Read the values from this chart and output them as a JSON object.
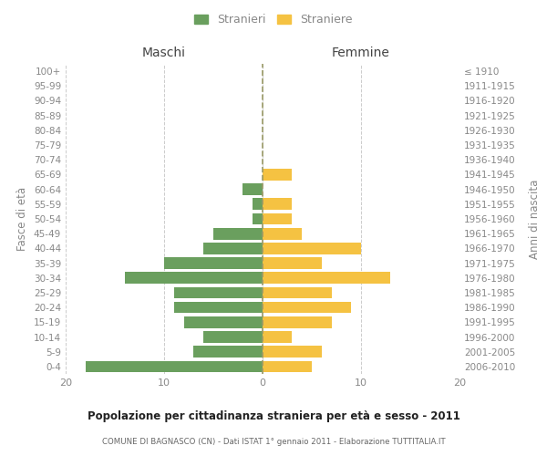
{
  "age_groups": [
    "0-4",
    "5-9",
    "10-14",
    "15-19",
    "20-24",
    "25-29",
    "30-34",
    "35-39",
    "40-44",
    "45-49",
    "50-54",
    "55-59",
    "60-64",
    "65-69",
    "70-74",
    "75-79",
    "80-84",
    "85-89",
    "90-94",
    "95-99",
    "100+"
  ],
  "birth_years": [
    "2006-2010",
    "2001-2005",
    "1996-2000",
    "1991-1995",
    "1986-1990",
    "1981-1985",
    "1976-1980",
    "1971-1975",
    "1966-1970",
    "1961-1965",
    "1956-1960",
    "1951-1955",
    "1946-1950",
    "1941-1945",
    "1936-1940",
    "1931-1935",
    "1926-1930",
    "1921-1925",
    "1916-1920",
    "1911-1915",
    "≤ 1910"
  ],
  "maschi": [
    18,
    7,
    6,
    8,
    9,
    9,
    14,
    10,
    6,
    5,
    1,
    1,
    2,
    0,
    0,
    0,
    0,
    0,
    0,
    0,
    0
  ],
  "femmine": [
    5,
    6,
    3,
    7,
    9,
    7,
    13,
    6,
    10,
    4,
    3,
    3,
    0,
    3,
    0,
    0,
    0,
    0,
    0,
    0,
    0
  ],
  "maschi_color": "#6a9f5e",
  "femmine_color": "#f5c242",
  "title": "Popolazione per cittadinanza straniera per età e sesso - 2011",
  "subtitle": "COMUNE DI BAGNASCO (CN) - Dati ISTAT 1° gennaio 2011 - Elaborazione TUTTITALIA.IT",
  "xlabel_left": "Maschi",
  "xlabel_right": "Femmine",
  "ylabel_left": "Fasce di età",
  "ylabel_right": "Anni di nascita",
  "legend_maschi": "Stranieri",
  "legend_femmine": "Straniere",
  "xlim": 20,
  "background_color": "#ffffff",
  "grid_color": "#cccccc",
  "text_color": "#888888",
  "center_line_color": "#999966"
}
